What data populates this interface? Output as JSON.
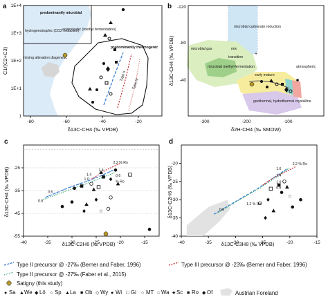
{
  "chart_data": [
    {
      "panel": "a",
      "type": "scatter",
      "xlabel": "δ13C-CH4 (‰ VPDB)",
      "ylabel": "C1/(C2+C3)",
      "x_ticks": [
        "-80",
        "-60",
        "-40",
        "-20"
      ],
      "y_ticks": [
        "1E+4",
        "1E+3",
        "1E+2",
        "1E+1",
        "1"
      ],
      "regions": [
        {
          "label": "predominantly microbial"
        },
        {
          "label": "hydrogenotrophic (CO2 reduction)"
        },
        {
          "label": "acetoclastic (methyl fermentation)"
        },
        {
          "label": "mixing alteration diagenetic"
        },
        {
          "label": "predominantly thermogenic"
        }
      ],
      "curve_labels": [
        "Type II",
        "Type III"
      ]
    },
    {
      "panel": "b",
      "type": "scatter",
      "xlabel": "δ2H-CH4 (‰ SMOW)",
      "ylabel": "δ13C-CH4 (‰ VPDB)",
      "x_ticks": [
        "-300",
        "-200",
        "-100"
      ],
      "y_ticks": [
        "-120",
        "-80",
        "-40"
      ],
      "regions": [
        {
          "label": "microbial carbonate reduction"
        },
        {
          "label": "microbial gas"
        },
        {
          "label": "mix"
        },
        {
          "label": "transition"
        },
        {
          "label": "microbial methyl-fermentation"
        },
        {
          "label": "early mature"
        },
        {
          "label": "geothermal, hydrothermal crystalline"
        },
        {
          "label": "atmospheric"
        }
      ]
    },
    {
      "panel": "c",
      "type": "scatter",
      "xlabel": "δ13C-C2H6 (‰ VPDB)",
      "ylabel": "δ13C-CH4 (‰ VPDB)",
      "x_ticks": [
        "-40",
        "-35",
        "-30",
        "-25",
        "-20",
        "-15"
      ],
      "y_ticks": [
        "-25",
        "-35",
        "-45",
        "-55"
      ],
      "xlim": [
        -40,
        -12
      ],
      "ylim": [
        -55,
        -15
      ],
      "curve_labels": [
        "2.2 % Ro",
        "1.4",
        "1.4",
        "1.0",
        "0.6",
        "0.6",
        "0.6",
        "% Ro"
      ],
      "points": [
        {
          "x": -21,
          "y": -26
        },
        {
          "x": -24,
          "y": -27
        },
        {
          "x": -22,
          "y": -30
        },
        {
          "x": -26,
          "y": -32
        },
        {
          "x": -28,
          "y": -33
        },
        {
          "x": -25.5,
          "y": -34.5
        },
        {
          "x": -24.5,
          "y": -33.5
        },
        {
          "x": -29.5,
          "y": -34
        },
        {
          "x": -25,
          "y": -39
        },
        {
          "x": -24,
          "y": -44
        },
        {
          "x": -22.5,
          "y": -43
        },
        {
          "x": -30,
          "y": -40
        },
        {
          "x": -32,
          "y": -42
        },
        {
          "x": -27,
          "y": -41
        },
        {
          "x": -27.5,
          "y": -44
        },
        {
          "x": -22,
          "y": -38
        },
        {
          "x": -23.5,
          "y": -29
        },
        {
          "x": -20.5,
          "y": -32
        },
        {
          "x": -18,
          "y": -28
        },
        {
          "x": -14,
          "y": -52
        }
      ],
      "satigny": {
        "x": -23,
        "y": -54
      }
    },
    {
      "panel": "d",
      "type": "scatter",
      "xlabel": "δ13C-C3H8 (‰ VPDB)",
      "ylabel": "δ13C-C2H6 (‰ VPDB)",
      "x_ticks": [
        "-40",
        "-35",
        "-30",
        "-25",
        "-20",
        "-15"
      ],
      "y_ticks": [
        "-20",
        "-25",
        "-30",
        "-35",
        "-40"
      ],
      "xlim": [
        -40,
        -15
      ],
      "ylim": [
        -40,
        -15
      ],
      "curve_labels": [
        "2.2 % Ro",
        "1.6",
        "1.4",
        "1.0",
        "0.6",
        "0.6",
        "1.2 % Ro"
      ],
      "points": [
        {
          "x": -21,
          "y": -25
        },
        {
          "x": -22,
          "y": -26
        },
        {
          "x": -20.5,
          "y": -26.5
        },
        {
          "x": -23.5,
          "y": -27
        },
        {
          "x": -21.5,
          "y": -28
        },
        {
          "x": -24,
          "y": -30
        },
        {
          "x": -20,
          "y": -29
        },
        {
          "x": -25.5,
          "y": -31
        },
        {
          "x": -19.5,
          "y": -32
        },
        {
          "x": -18,
          "y": -30
        },
        {
          "x": -23,
          "y": -33
        },
        {
          "x": -24.5,
          "y": -35
        }
      ]
    }
  ],
  "legend": {
    "items": [
      {
        "label": "Type II precursor @ -27‰ (Berner and Faber, 1996)",
        "color": "#3b7fd4"
      },
      {
        "label": "Type III precursor @ -23‰ (Berner and Faber, 1996)",
        "color": "#c8343a"
      },
      {
        "label": "Type II precursor @ -27‰ (Faber et al., 2015)",
        "color": "#2fa36b"
      },
      {
        "label": "Satigny (this study)",
        "color": "#b89a2a"
      }
    ],
    "symbols": [
      {
        "glyph": "●",
        "label": "Sa"
      },
      {
        "glyph": "▲",
        "label": "We"
      },
      {
        "glyph": "◆",
        "label": "Lö"
      },
      {
        "glyph": "○",
        "label": "Sp"
      },
      {
        "glyph": "▲",
        "label": "La"
      },
      {
        "glyph": "■",
        "label": "Ob"
      },
      {
        "glyph": "◇",
        "label": "Wy"
      },
      {
        "glyph": "●",
        "label": "Wi"
      },
      {
        "glyph": "□",
        "label": "Gi"
      },
      {
        "glyph": "○",
        "label": "MT"
      },
      {
        "glyph": "☆",
        "label": "Wa"
      },
      {
        "glyph": "★",
        "label": "Sc"
      },
      {
        "glyph": "■",
        "label": "Ro"
      },
      {
        "glyph": "◆",
        "label": "Of"
      }
    ],
    "austrian_foreland": "Austrian Foreland"
  }
}
